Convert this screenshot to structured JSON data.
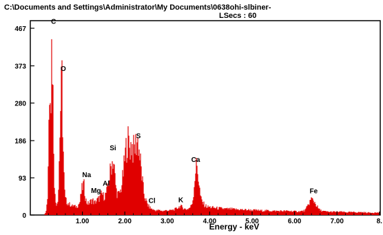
{
  "window_path": "C:\\Documents and Settings\\Administrator\\My Documents\\0638ohi-slbiner-",
  "live_secs_label": "LSecs : 60",
  "colors": {
    "spectrum": "#e00000",
    "axis": "#000000",
    "background": "#ffffff"
  },
  "chart_data": {
    "type": "area",
    "title": "",
    "xlabel": "Energy - keV",
    "ylabel": "",
    "xlim": [
      0,
      8.6
    ],
    "ylim": [
      0,
      467
    ],
    "x_ticks": [
      {
        "value": 1,
        "label": "1.00"
      },
      {
        "value": 2,
        "label": "2.00"
      },
      {
        "value": 3,
        "label": "3.00"
      },
      {
        "value": 4,
        "label": "4.00"
      },
      {
        "value": 5,
        "label": "5.00"
      },
      {
        "value": 6,
        "label": "6.00"
      },
      {
        "value": 7,
        "label": "7.00"
      },
      {
        "value": 8,
        "label": "8."
      }
    ],
    "y_ticks": [
      {
        "value": 0,
        "label": "0"
      },
      {
        "value": 93,
        "label": "93"
      },
      {
        "value": 186,
        "label": "186"
      },
      {
        "value": 280,
        "label": "280"
      },
      {
        "value": 373,
        "label": "373"
      },
      {
        "value": 467,
        "label": "467"
      }
    ],
    "peaks": [
      {
        "element": "C",
        "energy": 0.28,
        "counts": 450
      },
      {
        "element": "O",
        "energy": 0.52,
        "counts": 335
      },
      {
        "element": "Na",
        "energy": 1.04,
        "counts": 75
      },
      {
        "element": "Mg",
        "energy": 1.25,
        "counts": 38
      },
      {
        "element": "Al",
        "energy": 1.49,
        "counts": 52
      },
      {
        "element": "Si",
        "energy": 1.74,
        "counts": 138
      },
      {
        "element": "S",
        "energy": 2.31,
        "counts": 188
      },
      {
        "element": "Cl",
        "energy": 2.62,
        "counts": 12
      },
      {
        "element": "K",
        "energy": 3.31,
        "counts": 22
      },
      {
        "element": "Ca",
        "energy": 3.69,
        "counts": 122
      },
      {
        "element": "Fe",
        "energy": 6.4,
        "counts": 40
      }
    ],
    "peak_labels": [
      {
        "text": "C",
        "energy": 0.32,
        "counts": 478
      },
      {
        "text": "O",
        "energy": 0.55,
        "counts": 360
      },
      {
        "text": "Na",
        "energy": 1.1,
        "counts": 95
      },
      {
        "text": "Mg",
        "energy": 1.32,
        "counts": 55
      },
      {
        "text": "Al",
        "energy": 1.56,
        "counts": 73
      },
      {
        "text": "Si",
        "energy": 1.72,
        "counts": 162
      },
      {
        "text": "S",
        "energy": 2.32,
        "counts": 192
      },
      {
        "text": "Cl",
        "energy": 2.64,
        "counts": 30
      },
      {
        "text": "K",
        "energy": 3.32,
        "counts": 32
      },
      {
        "text": "Ca",
        "energy": 3.67,
        "counts": 133
      },
      {
        "text": "Fe",
        "energy": 6.45,
        "counts": 54
      }
    ],
    "spectrum": [
      [
        0.1,
        2
      ],
      [
        0.14,
        6
      ],
      [
        0.18,
        45
      ],
      [
        0.2,
        160
      ],
      [
        0.22,
        300
      ],
      [
        0.24,
        380
      ],
      [
        0.26,
        300
      ],
      [
        0.28,
        450
      ],
      [
        0.3,
        360
      ],
      [
        0.32,
        210
      ],
      [
        0.34,
        90
      ],
      [
        0.36,
        40
      ],
      [
        0.38,
        28
      ],
      [
        0.4,
        30
      ],
      [
        0.42,
        38
      ],
      [
        0.44,
        70
      ],
      [
        0.46,
        160
      ],
      [
        0.48,
        250
      ],
      [
        0.5,
        300
      ],
      [
        0.52,
        335
      ],
      [
        0.54,
        210
      ],
      [
        0.56,
        120
      ],
      [
        0.58,
        60
      ],
      [
        0.6,
        40
      ],
      [
        0.62,
        35
      ],
      [
        0.64,
        32
      ],
      [
        0.66,
        30
      ],
      [
        0.68,
        28
      ],
      [
        0.7,
        26
      ],
      [
        0.72,
        27
      ],
      [
        0.74,
        24
      ],
      [
        0.76,
        22
      ],
      [
        0.78,
        23
      ],
      [
        0.8,
        24
      ],
      [
        0.82,
        20
      ],
      [
        0.84,
        22
      ],
      [
        0.86,
        21
      ],
      [
        0.88,
        23
      ],
      [
        0.9,
        25
      ],
      [
        0.92,
        28
      ],
      [
        0.94,
        32
      ],
      [
        0.96,
        45
      ],
      [
        0.98,
        60
      ],
      [
        1.0,
        68
      ],
      [
        1.02,
        75
      ],
      [
        1.04,
        72
      ],
      [
        1.06,
        55
      ],
      [
        1.08,
        40
      ],
      [
        1.1,
        32
      ],
      [
        1.12,
        30
      ],
      [
        1.14,
        28
      ],
      [
        1.16,
        30
      ],
      [
        1.18,
        32
      ],
      [
        1.2,
        35
      ],
      [
        1.22,
        36
      ],
      [
        1.24,
        38
      ],
      [
        1.26,
        34
      ],
      [
        1.28,
        30
      ],
      [
        1.3,
        32
      ],
      [
        1.32,
        34
      ],
      [
        1.34,
        36
      ],
      [
        1.36,
        38
      ],
      [
        1.38,
        40
      ],
      [
        1.4,
        42
      ],
      [
        1.42,
        45
      ],
      [
        1.44,
        50
      ],
      [
        1.46,
        52
      ],
      [
        1.48,
        50
      ],
      [
        1.5,
        46
      ],
      [
        1.52,
        48
      ],
      [
        1.54,
        50
      ],
      [
        1.56,
        55
      ],
      [
        1.58,
        60
      ],
      [
        1.6,
        68
      ],
      [
        1.62,
        80
      ],
      [
        1.64,
        95
      ],
      [
        1.66,
        110
      ],
      [
        1.68,
        125
      ],
      [
        1.7,
        132
      ],
      [
        1.72,
        138
      ],
      [
        1.74,
        130
      ],
      [
        1.76,
        105
      ],
      [
        1.78,
        80
      ],
      [
        1.8,
        62
      ],
      [
        1.82,
        55
      ],
      [
        1.84,
        52
      ],
      [
        1.86,
        50
      ],
      [
        1.88,
        55
      ],
      [
        1.9,
        60
      ],
      [
        1.92,
        70
      ],
      [
        1.94,
        85
      ],
      [
        1.96,
        100
      ],
      [
        1.98,
        120
      ],
      [
        2.0,
        140
      ],
      [
        2.02,
        160
      ],
      [
        2.04,
        172
      ],
      [
        2.06,
        180
      ],
      [
        2.08,
        185
      ],
      [
        2.1,
        176
      ],
      [
        2.12,
        168
      ],
      [
        2.14,
        172
      ],
      [
        2.16,
        178
      ],
      [
        2.18,
        170
      ],
      [
        2.2,
        160
      ],
      [
        2.22,
        165
      ],
      [
        2.24,
        170
      ],
      [
        2.26,
        178
      ],
      [
        2.28,
        182
      ],
      [
        2.3,
        188
      ],
      [
        2.32,
        178
      ],
      [
        2.34,
        160
      ],
      [
        2.36,
        140
      ],
      [
        2.38,
        120
      ],
      [
        2.4,
        100
      ],
      [
        2.42,
        80
      ],
      [
        2.44,
        62
      ],
      [
        2.46,
        50
      ],
      [
        2.48,
        42
      ],
      [
        2.5,
        36
      ],
      [
        2.52,
        30
      ],
      [
        2.54,
        26
      ],
      [
        2.56,
        22
      ],
      [
        2.58,
        20
      ],
      [
        2.6,
        18
      ],
      [
        2.62,
        16
      ],
      [
        2.64,
        15
      ],
      [
        2.66,
        14
      ],
      [
        2.68,
        13
      ],
      [
        2.7,
        12
      ],
      [
        2.75,
        11
      ],
      [
        2.8,
        12
      ],
      [
        2.85,
        11
      ],
      [
        2.9,
        10
      ],
      [
        2.95,
        11
      ],
      [
        3.0,
        12
      ],
      [
        3.05,
        11
      ],
      [
        3.1,
        12
      ],
      [
        3.15,
        13
      ],
      [
        3.2,
        15
      ],
      [
        3.25,
        18
      ],
      [
        3.3,
        22
      ],
      [
        3.35,
        20
      ],
      [
        3.4,
        16
      ],
      [
        3.45,
        14
      ],
      [
        3.5,
        16
      ],
      [
        3.55,
        20
      ],
      [
        3.6,
        35
      ],
      [
        3.62,
        55
      ],
      [
        3.64,
        80
      ],
      [
        3.66,
        105
      ],
      [
        3.68,
        120
      ],
      [
        3.7,
        122
      ],
      [
        3.72,
        110
      ],
      [
        3.74,
        90
      ],
      [
        3.76,
        68
      ],
      [
        3.78,
        50
      ],
      [
        3.8,
        38
      ],
      [
        3.84,
        30
      ],
      [
        3.88,
        25
      ],
      [
        3.92,
        22
      ],
      [
        3.96,
        20
      ],
      [
        4.0,
        20
      ],
      [
        4.05,
        19
      ],
      [
        4.1,
        18
      ],
      [
        4.2,
        17
      ],
      [
        4.3,
        16
      ],
      [
        4.4,
        15
      ],
      [
        4.5,
        15
      ],
      [
        4.6,
        14
      ],
      [
        4.7,
        14
      ],
      [
        4.8,
        13
      ],
      [
        4.9,
        13
      ],
      [
        5.0,
        12
      ],
      [
        5.1,
        12
      ],
      [
        5.2,
        11
      ],
      [
        5.3,
        11
      ],
      [
        5.4,
        11
      ],
      [
        5.5,
        10
      ],
      [
        5.6,
        10
      ],
      [
        5.7,
        10
      ],
      [
        5.8,
        10
      ],
      [
        5.9,
        10
      ],
      [
        6.0,
        9
      ],
      [
        6.1,
        9
      ],
      [
        6.2,
        10
      ],
      [
        6.25,
        12
      ],
      [
        6.3,
        20
      ],
      [
        6.35,
        32
      ],
      [
        6.4,
        40
      ],
      [
        6.45,
        36
      ],
      [
        6.5,
        28
      ],
      [
        6.55,
        18
      ],
      [
        6.6,
        12
      ],
      [
        6.7,
        9
      ],
      [
        6.8,
        8
      ],
      [
        6.9,
        8
      ],
      [
        7.0,
        8
      ],
      [
        7.1,
        8
      ],
      [
        7.2,
        7
      ],
      [
        7.3,
        7
      ],
      [
        7.4,
        7
      ],
      [
        7.5,
        7
      ],
      [
        7.6,
        7
      ],
      [
        7.7,
        6
      ],
      [
        7.8,
        6
      ],
      [
        7.9,
        6
      ],
      [
        8.0,
        6
      ],
      [
        8.2,
        6
      ],
      [
        8.4,
        5
      ],
      [
        8.6,
        5
      ]
    ]
  }
}
